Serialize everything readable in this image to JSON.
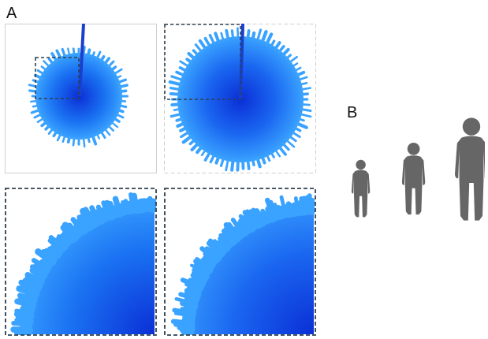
{
  "labels": {
    "panel_a": "A",
    "panel_b": "B"
  },
  "colors": {
    "blob_edge": "#3aa2ff",
    "blob_mid": "#1a72f2",
    "blob_core": "#0b2fd6",
    "needle": "#1a3fcc",
    "zoom_frame": "#2f4050",
    "figure_gray": "#666666",
    "plain_frame": "#cfcfcf"
  },
  "icons": {
    "silhouettes": [
      "child-silhouette-icon",
      "youth-silhouette-icon",
      "adult-silhouette-icon"
    ]
  }
}
